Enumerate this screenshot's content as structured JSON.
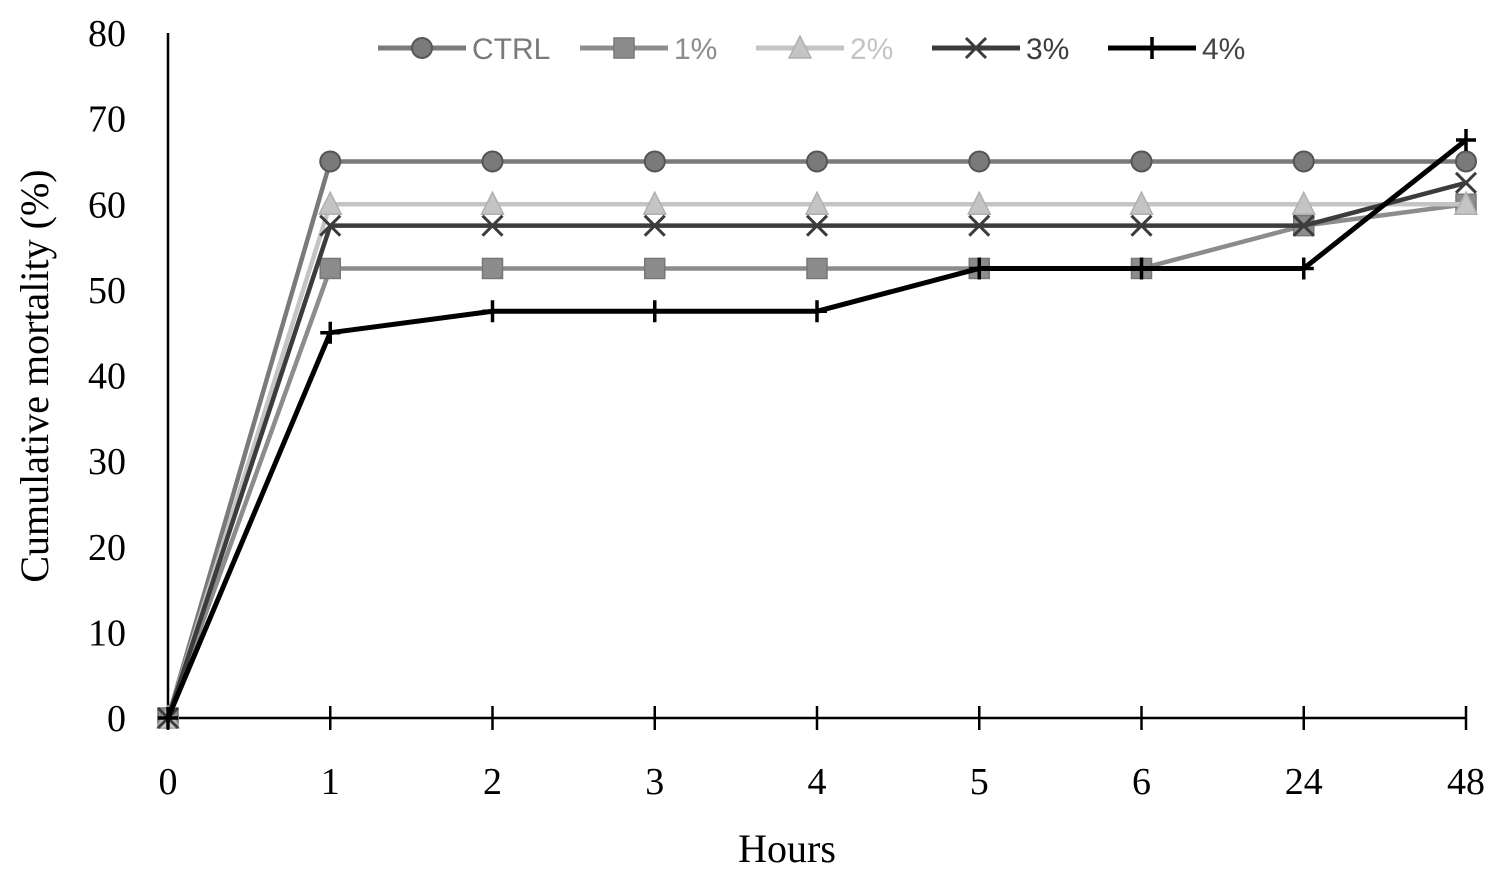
{
  "chart_data": {
    "type": "line",
    "title": "",
    "xlabel": "Hours",
    "ylabel": "Cumulative mortality (%)",
    "categories": [
      "0",
      "1",
      "2",
      "3",
      "4",
      "5",
      "6",
      "24",
      "48"
    ],
    "ylim": [
      0,
      80
    ],
    "yticks": [
      0,
      10,
      20,
      30,
      40,
      50,
      60,
      70,
      80
    ],
    "grid": false,
    "legend_position": "top",
    "series": [
      {
        "name": "CTRL",
        "marker": "circle",
        "color": "#7a7a7a",
        "values": [
          0,
          65,
          65,
          65,
          65,
          65,
          65,
          65,
          65
        ]
      },
      {
        "name": "1%",
        "marker": "square",
        "color": "#8c8c8c",
        "values": [
          0,
          52.5,
          52.5,
          52.5,
          52.5,
          52.5,
          52.5,
          57.5,
          60
        ]
      },
      {
        "name": "2%",
        "marker": "triangle",
        "color": "#c4c4c4",
        "values": [
          0,
          60,
          60,
          60,
          60,
          60,
          60,
          60,
          60
        ]
      },
      {
        "name": "3%",
        "marker": "x",
        "color": "#3c3c3c",
        "values": [
          0,
          57.5,
          57.5,
          57.5,
          57.5,
          57.5,
          57.5,
          57.5,
          62.5
        ]
      },
      {
        "name": "4%",
        "marker": "plus",
        "color": "#000000",
        "values": [
          0,
          45,
          47.5,
          47.5,
          47.5,
          52.5,
          52.5,
          52.5,
          67.5
        ]
      }
    ]
  }
}
